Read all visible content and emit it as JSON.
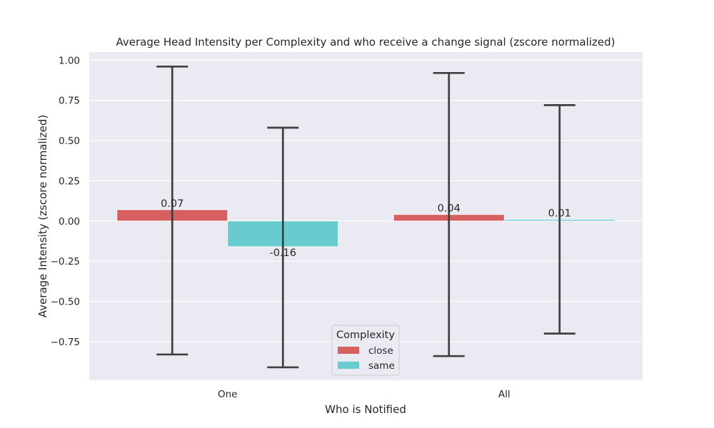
{
  "chart_data": {
    "type": "bar",
    "title": "Average Head Intensity per Complexity and who receive a change signal (zscore normalized)",
    "xlabel": "Who is Notified",
    "ylabel": "Average Intensity (zscore normalized)",
    "categories": [
      "One",
      "All"
    ],
    "series": [
      {
        "name": "close",
        "color": "#d65f5f",
        "values": [
          0.07,
          0.04
        ],
        "labels": [
          "0.07",
          "0.04"
        ],
        "err_low": [
          -0.83,
          -0.84
        ],
        "err_high": [
          0.96,
          0.92
        ]
      },
      {
        "name": "same",
        "color": "#6acbcf",
        "values": [
          -0.16,
          0.01
        ],
        "labels": [
          "-0.16",
          "0.01"
        ],
        "err_low": [
          -0.91,
          -0.7
        ],
        "err_high": [
          0.58,
          0.72
        ]
      }
    ],
    "ylim": [
      -0.99,
      1.05
    ],
    "yticks": [
      -0.75,
      -0.5,
      -0.25,
      0.0,
      0.25,
      0.5,
      0.75,
      1.0
    ],
    "ytick_labels": [
      "−0.75",
      "−0.50",
      "−0.25",
      "0.00",
      "0.25",
      "0.50",
      "0.75",
      "1.00"
    ],
    "grid": true,
    "background": "#eaeaf2",
    "grid_color": "#ffffff",
    "errorbar_color": "#3f3f3f",
    "legend": {
      "title": "Complexity",
      "placement": "lower-center"
    }
  }
}
